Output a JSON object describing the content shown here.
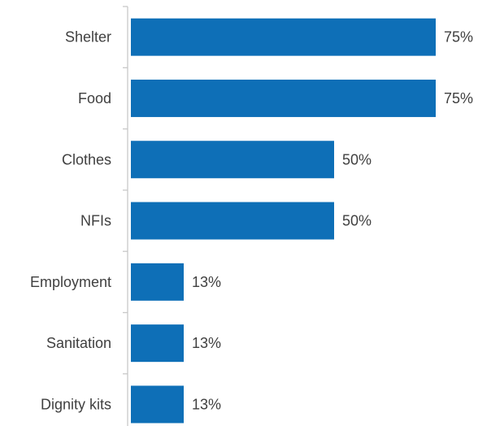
{
  "chart_data": {
    "type": "bar",
    "orientation": "horizontal",
    "title": "",
    "xlabel": "",
    "ylabel": "",
    "xlim": [
      0,
      100
    ],
    "grid": false,
    "legend": "none",
    "categories": [
      "Shelter",
      "Food",
      "Clothes",
      "NFIs",
      "Employment",
      "Sanitation",
      "Dignity kits"
    ],
    "values": [
      75,
      75,
      50,
      50,
      13,
      13,
      13
    ],
    "data_labels": [
      "75%",
      "75%",
      "50%",
      "50%",
      "13%",
      "13%",
      "13%"
    ],
    "bar_color": "#0e6fb7",
    "axis_color": "#c8c8c8",
    "text_color": "#404040"
  }
}
